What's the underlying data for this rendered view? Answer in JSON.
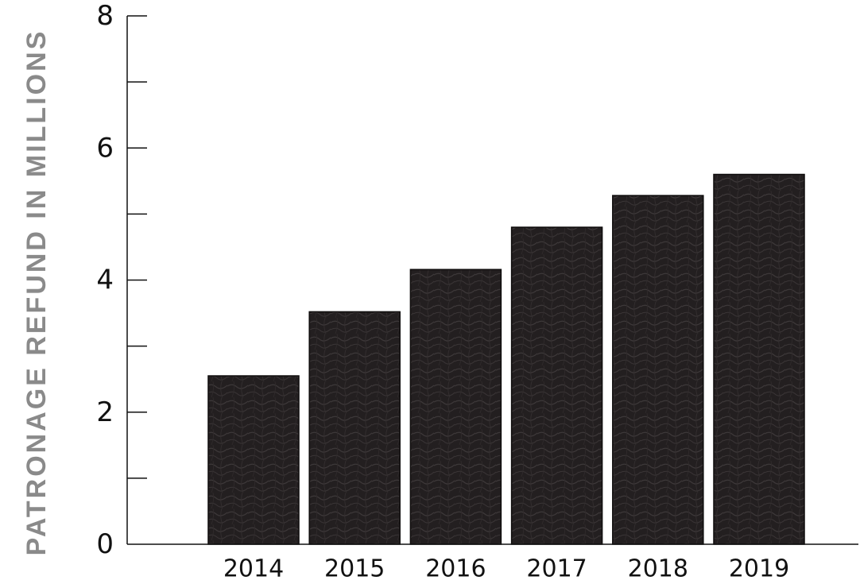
{
  "chart_data": {
    "type": "bar",
    "categories": [
      "2014",
      "2015",
      "2016",
      "2017",
      "2018",
      "2019"
    ],
    "values": [
      2.55,
      3.52,
      4.16,
      4.8,
      5.28,
      5.6
    ],
    "title": "",
    "xlabel": "",
    "ylabel": "PATRONAGE REFUND IN MILLIONS",
    "ylim": [
      0,
      8
    ],
    "yticks_major": [
      0,
      2,
      4,
      6,
      8
    ],
    "yticks_minor": [
      1,
      3,
      5,
      7
    ],
    "grid": false,
    "legend": "none"
  },
  "colors": {
    "bar_fill": "#231f20",
    "bar_texture": "#3a3536",
    "bar_border": "#ffffff",
    "axis": "#111111",
    "ylabel": "#8a8a8a"
  }
}
